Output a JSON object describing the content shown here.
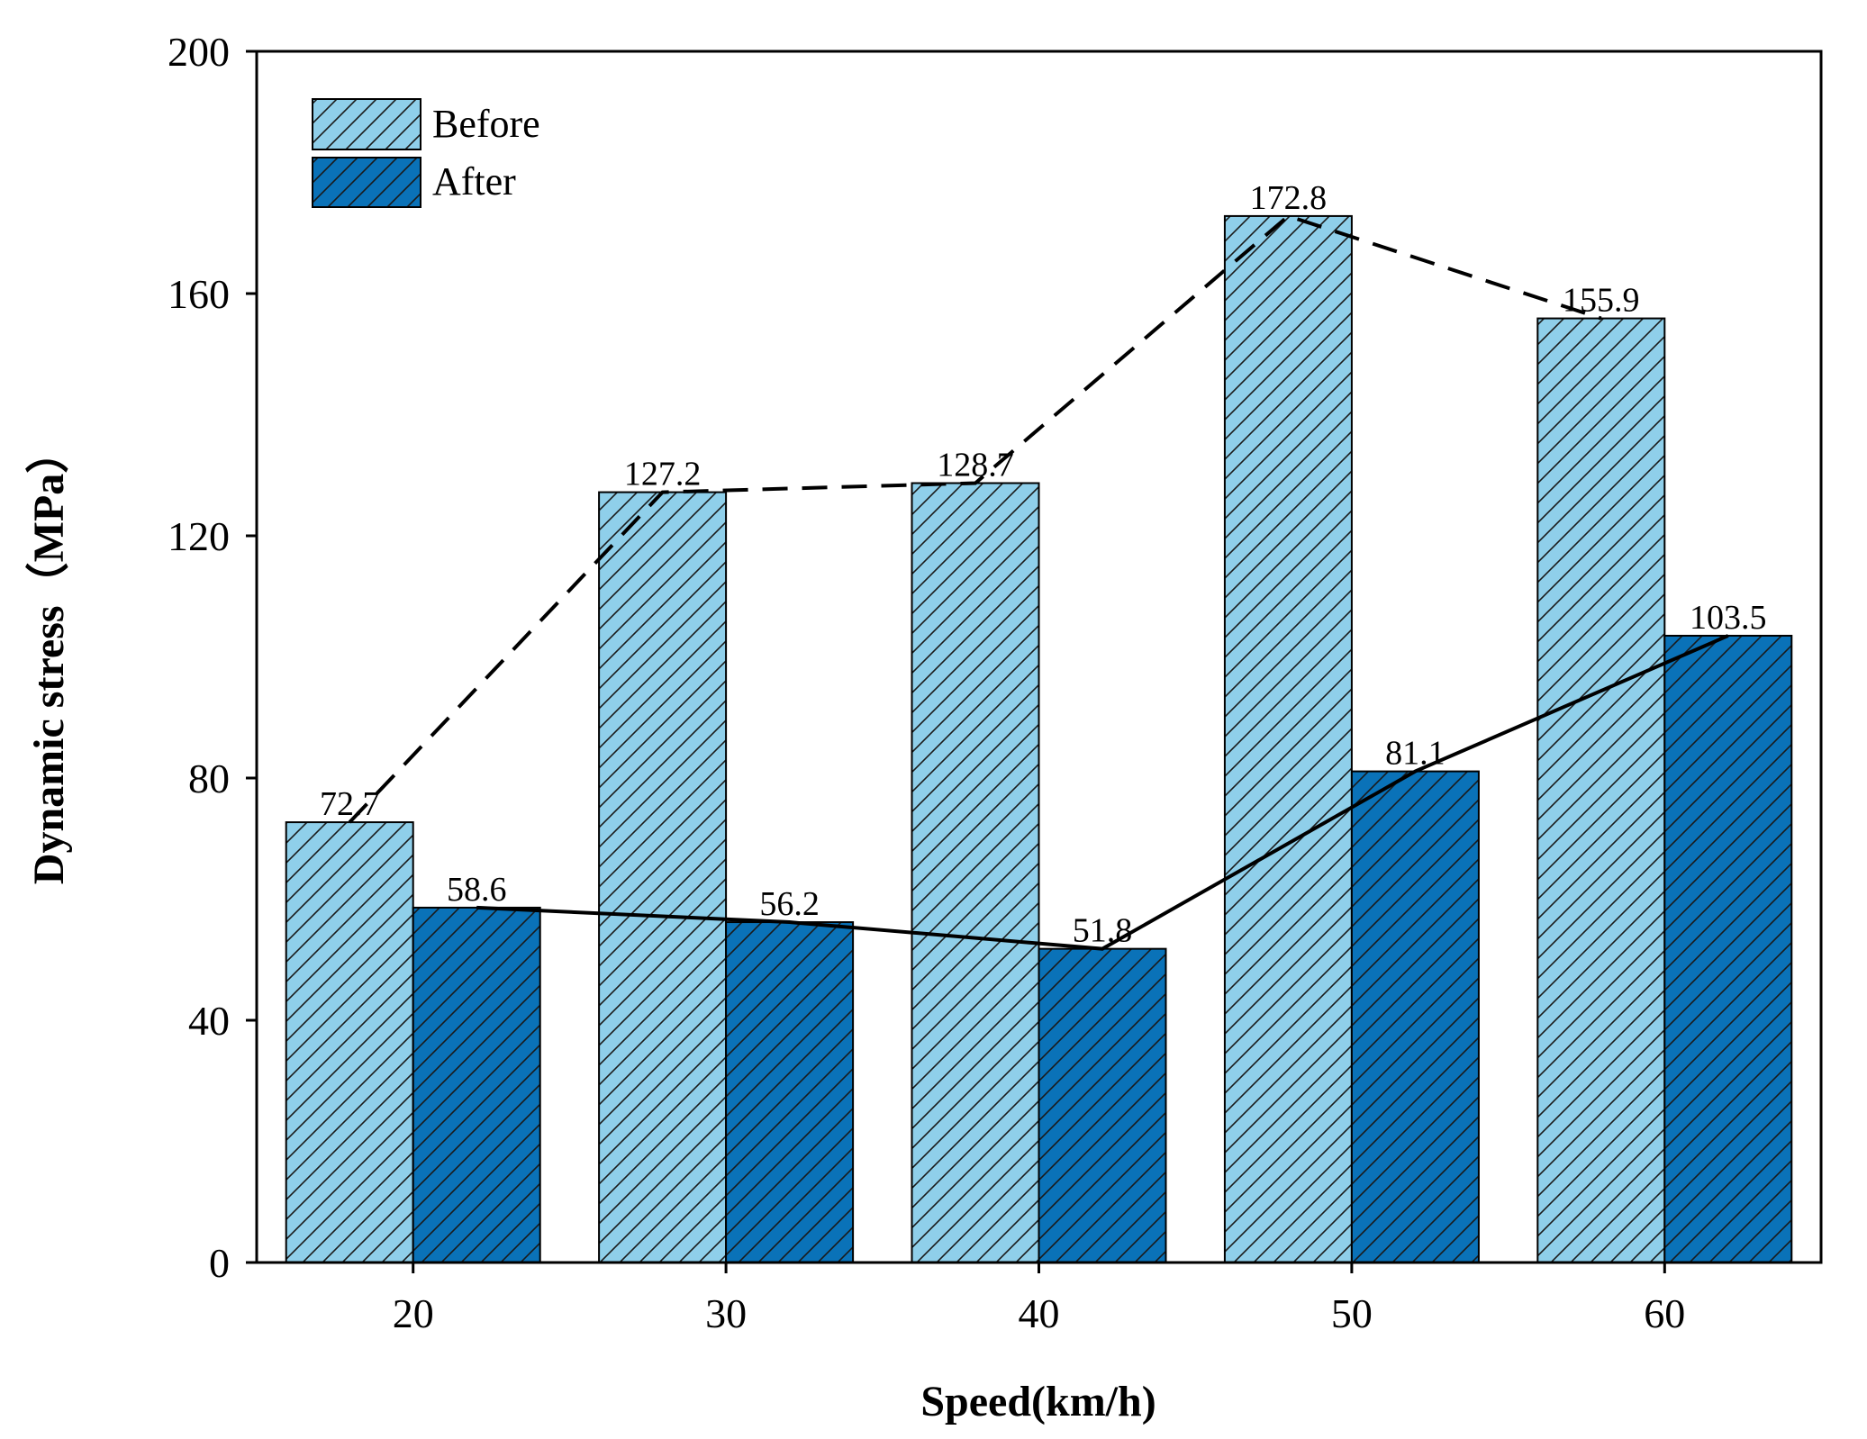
{
  "chart_data": {
    "type": "bar",
    "title": "",
    "xlabel": "Speed(km/h)",
    "ylabel": "Dynamic stress（MPa）",
    "categories": [
      "20",
      "30",
      "40",
      "50",
      "60"
    ],
    "ylim": [
      0,
      200
    ],
    "yticks": [
      0,
      40,
      80,
      120,
      160,
      200
    ],
    "legend_position": "top-left",
    "series": [
      {
        "name": "Before",
        "values": [
          72.7,
          127.2,
          128.7,
          172.8,
          155.9
        ],
        "labels": [
          "72.7",
          "127.2",
          "128.7",
          "172.8",
          "155.9"
        ],
        "color": "#8fcfea",
        "trend_line": "dashed"
      },
      {
        "name": "After",
        "values": [
          58.6,
          56.2,
          51.8,
          81.1,
          103.5
        ],
        "labels": [
          "58.6",
          "56.2",
          "51.8",
          "81.1",
          "103.5"
        ],
        "color": "#0a72b8",
        "trend_line": "solid"
      }
    ]
  }
}
